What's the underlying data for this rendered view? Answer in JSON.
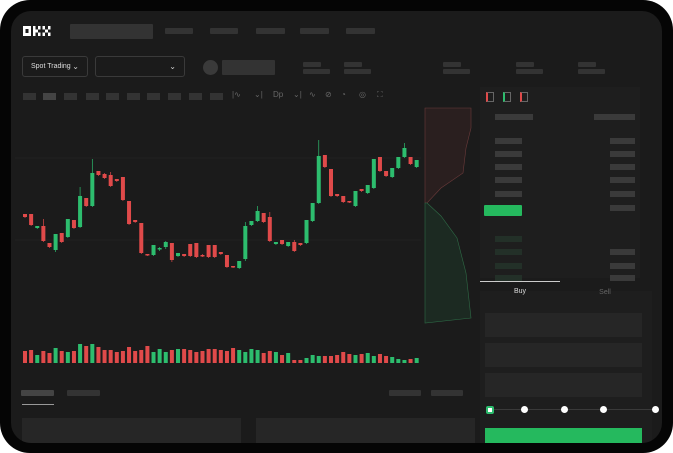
{
  "brand": {
    "logo": "OKX"
  },
  "toolbar": {
    "market_selector": "Spot Trading",
    "pair_selector": "",
    "icons": [
      "indicator-icon",
      "chevron-down-icon",
      "chart-type-icon",
      "chevron-down-icon",
      "line-tool-icon",
      "draw-icon",
      "snapshot-icon",
      "settings-icon",
      "fullscreen-icon"
    ]
  },
  "orderbook": {
    "layout_icons": [
      "orderbook-both-icon",
      "orderbook-bids-icon",
      "orderbook-asks-icon"
    ]
  },
  "order_form": {
    "tabs": [
      "Buy",
      "Sell"
    ],
    "active_tab": "Buy",
    "slider_percent": 0,
    "slider_marks": [
      0,
      25,
      50,
      75,
      100
    ]
  },
  "colors": {
    "up": "#2dbd6e",
    "down": "#e04a4a",
    "background": "#1b1b1b",
    "accent": "#25b95e"
  },
  "chart_data": {
    "type": "candlestick",
    "ohlc": [
      [
        67,
        64,
        67,
        64
      ],
      [
        67,
        56,
        67,
        56
      ],
      [
        53,
        55,
        55,
        53
      ],
      [
        55,
        40,
        62,
        40
      ],
      [
        38,
        34,
        38,
        34
      ],
      [
        31,
        47,
        47,
        30
      ],
      [
        48,
        39,
        48,
        39
      ],
      [
        44,
        62,
        62,
        44
      ],
      [
        61,
        53,
        61,
        53
      ],
      [
        54,
        85,
        94,
        54
      ],
      [
        83,
        75,
        83,
        75
      ],
      [
        75,
        108,
        122,
        75
      ],
      [
        110,
        106,
        110,
        106
      ],
      [
        107,
        103,
        108,
        103
      ],
      [
        106,
        95,
        109,
        95
      ],
      [
        102,
        100,
        102,
        100
      ],
      [
        104,
        81,
        104,
        81
      ],
      [
        80,
        57,
        80,
        57
      ],
      [
        61,
        59,
        61,
        59
      ],
      [
        58,
        28,
        58,
        28
      ],
      [
        27,
        26,
        27,
        26
      ],
      [
        26,
        36,
        36,
        26
      ],
      [
        32,
        33,
        34,
        31
      ],
      [
        34,
        39,
        40,
        33
      ],
      [
        38,
        21,
        38,
        20
      ],
      [
        25,
        28,
        28,
        25
      ],
      [
        27,
        25,
        27,
        25
      ],
      [
        37,
        25,
        37,
        25
      ],
      [
        38,
        24,
        38,
        24
      ],
      [
        26,
        25,
        27,
        25
      ],
      [
        36,
        24,
        36,
        24
      ],
      [
        36,
        24,
        36,
        24
      ],
      [
        29,
        27,
        29,
        27
      ],
      [
        26,
        14,
        26,
        14
      ],
      [
        15,
        14,
        15,
        14
      ],
      [
        13,
        20,
        20,
        13
      ],
      [
        22,
        55,
        59,
        21
      ],
      [
        56,
        60,
        60,
        56
      ],
      [
        60,
        70,
        75,
        60
      ],
      [
        68,
        59,
        68,
        59
      ],
      [
        64,
        40,
        69,
        40
      ],
      [
        37,
        39,
        39,
        37
      ],
      [
        41,
        37,
        41,
        37
      ],
      [
        35,
        39,
        39,
        35
      ],
      [
        39,
        30,
        41,
        30
      ],
      [
        38,
        36,
        38,
        36
      ],
      [
        38,
        61,
        61,
        38
      ],
      [
        60,
        78,
        78,
        60
      ],
      [
        78,
        125,
        141,
        78
      ],
      [
        126,
        114,
        126,
        114
      ],
      [
        112,
        85,
        112,
        85
      ],
      [
        87,
        85,
        87,
        85
      ],
      [
        85,
        79,
        85,
        79
      ],
      [
        80,
        79,
        80,
        79
      ],
      [
        75,
        90,
        90,
        75
      ],
      [
        92,
        90,
        92,
        90
      ],
      [
        88,
        96,
        96,
        88
      ],
      [
        93,
        122,
        122,
        93
      ],
      [
        124,
        110,
        124,
        110
      ],
      [
        110,
        105,
        110,
        105
      ],
      [
        104,
        113,
        113,
        104
      ],
      [
        113,
        124,
        124,
        113
      ],
      [
        124,
        133,
        138,
        124
      ],
      [
        124,
        117,
        124,
        117
      ],
      [
        114,
        121,
        121,
        114
      ]
    ],
    "volume": [
      12,
      13,
      8,
      12,
      10,
      15,
      12,
      11,
      12,
      19,
      17,
      19,
      16,
      13,
      13,
      11,
      12,
      16,
      12,
      13,
      17,
      11,
      14,
      11,
      13,
      14,
      14,
      13,
      11,
      12,
      14,
      14,
      13,
      12,
      15,
      13,
      11,
      14,
      13,
      10,
      12,
      11,
      8,
      10,
      3,
      3,
      5,
      8,
      7,
      7,
      7,
      8,
      11,
      9,
      8,
      9,
      10,
      7,
      9,
      7,
      6,
      4,
      3,
      4,
      5
    ],
    "xlabel": "",
    "ylabel": ""
  }
}
